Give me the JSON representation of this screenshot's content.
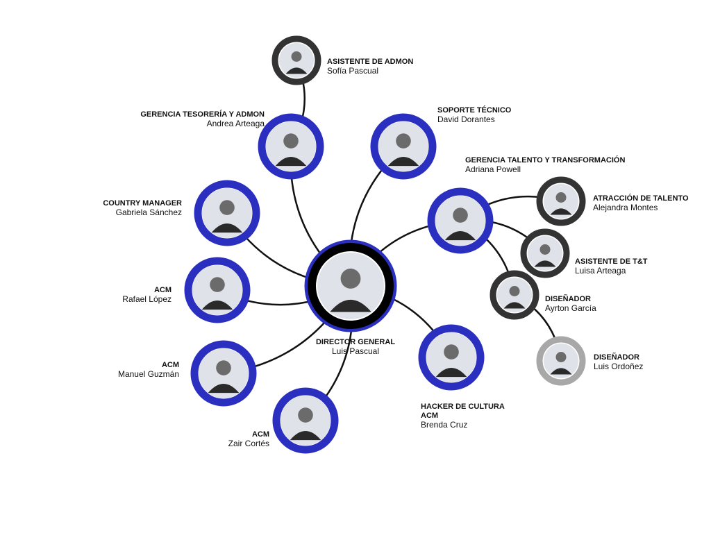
{
  "nodes": [
    {
      "role": "DIRECTOR GENERAL",
      "name": "Luis Pascual"
    },
    {
      "role": "ASISTENTE DE ADMON",
      "name": "Sofía Pascual"
    },
    {
      "role": "GERENCIA TESORERÍA Y ADMON",
      "name": "Andrea Arteaga"
    },
    {
      "role": "SOPORTE TÉCNICO",
      "name": "David Dorantes"
    },
    {
      "role": "GERENCIA TALENTO Y TRANSFORMACIÓN",
      "name": "Adriana Powell"
    },
    {
      "role": "ATRACCIÓN DE TALENTO",
      "name": "Alejandra Montes"
    },
    {
      "role": "ASISTENTE DE T&T",
      "name": "Luisa Arteaga"
    },
    {
      "role": "DISEÑADOR",
      "name": "Ayrton García"
    },
    {
      "role": "DISEÑADOR",
      "name": "Luis Ordoñez"
    },
    {
      "role": "HACKER DE CULTURA ACM",
      "name": "Brenda Cruz"
    },
    {
      "role": "COUNTRY MANAGER",
      "name": "Gabriela Sánchez"
    },
    {
      "role": "ACM",
      "name": "Rafael López"
    },
    {
      "role": "ACM",
      "name": "Manuel Guzmán"
    },
    {
      "role": "ACM",
      "name": "Zair Cortés"
    }
  ]
}
